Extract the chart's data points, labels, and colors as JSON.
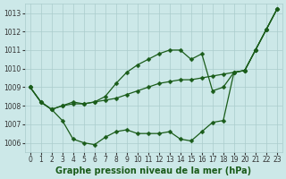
{
  "xlabel": "Graphe pression niveau de la mer (hPa)",
  "x": [
    0,
    1,
    2,
    3,
    4,
    5,
    6,
    7,
    8,
    9,
    10,
    11,
    12,
    13,
    14,
    15,
    16,
    17,
    18,
    19,
    20,
    21,
    22,
    23
  ],
  "line1": [
    1009.0,
    1008.2,
    1007.8,
    1007.2,
    1006.2,
    1006.0,
    1005.9,
    1006.3,
    1006.6,
    1006.7,
    1006.5,
    1006.5,
    1006.5,
    1006.6,
    1006.2,
    1006.1,
    1006.6,
    1007.1,
    1007.2,
    1009.8,
    1009.9,
    1011.0,
    1012.1,
    1013.2
  ],
  "line2": [
    1009.0,
    1008.2,
    1007.8,
    1008.0,
    1008.1,
    1008.1,
    1008.2,
    1008.3,
    1008.4,
    1008.6,
    1008.8,
    1009.0,
    1009.2,
    1009.3,
    1009.4,
    1009.4,
    1009.5,
    1009.6,
    1009.7,
    1009.8,
    1009.9,
    1011.0,
    1012.1,
    1013.2
  ],
  "line3": [
    1009.0,
    1008.2,
    1007.8,
    1008.0,
    1008.2,
    1008.1,
    1008.2,
    1008.5,
    1009.2,
    1009.8,
    1010.2,
    1010.5,
    1010.8,
    1011.0,
    1011.0,
    1010.5,
    1010.8,
    1008.8,
    1009.0,
    1009.8,
    1009.9,
    1011.0,
    1012.1,
    1013.2
  ],
  "bg_color": "#cce8e8",
  "grid_color": "#aacccc",
  "line_color": "#1a5c1a",
  "marker": "D",
  "marker_size": 2.5,
  "linewidth": 0.9,
  "ylim": [
    1005.5,
    1013.5
  ],
  "yticks": [
    1006,
    1007,
    1008,
    1009,
    1010,
    1011,
    1012,
    1013
  ],
  "xticks": [
    0,
    1,
    2,
    3,
    4,
    5,
    6,
    7,
    8,
    9,
    10,
    11,
    12,
    13,
    14,
    15,
    16,
    17,
    18,
    19,
    20,
    21,
    22,
    23
  ],
  "tick_fontsize": 5.5,
  "label_fontsize": 7
}
